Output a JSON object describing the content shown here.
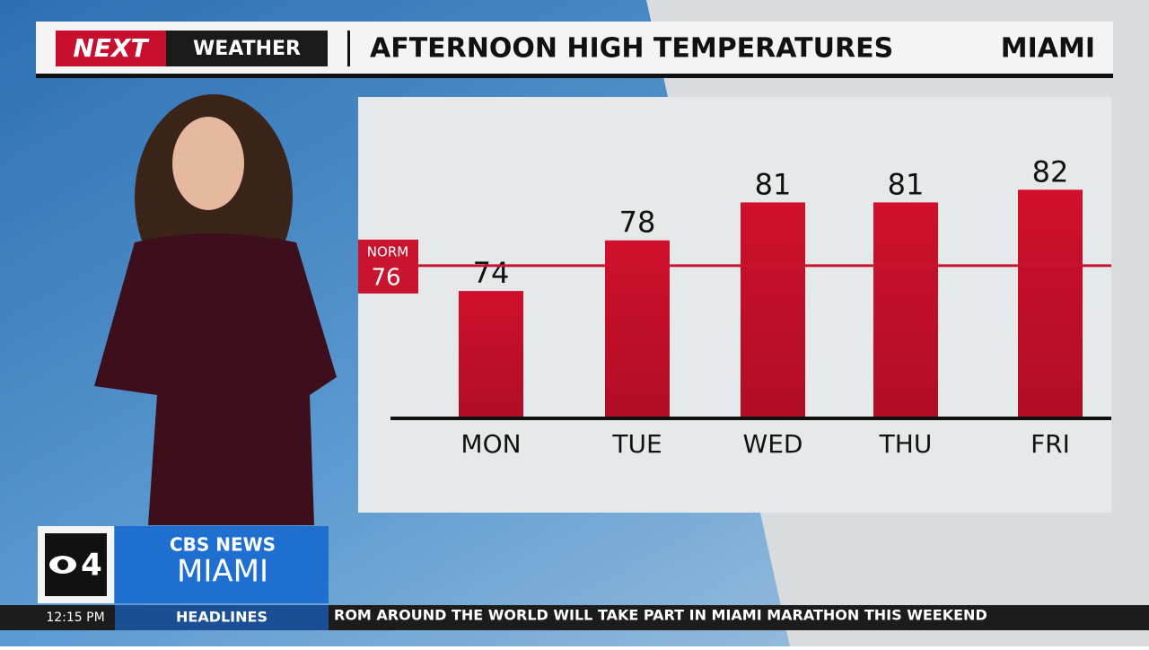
{
  "broadcast": {
    "brand": "NEXT",
    "segment": "WEATHER",
    "location": "MIAMI",
    "station_channel": "4",
    "station_network": "CBS NEWS",
    "station_city": "MIAMI",
    "time": "12:15 PM",
    "ticker_label": "HEADLINES",
    "ticker_text": "ROM AROUND THE WORLD WILL TAKE PART IN MIAMI MARATHON THIS WEEKEND"
  },
  "chart_data": {
    "type": "bar",
    "title": "AFTERNOON HIGH TEMPERATURES",
    "categories": [
      "MON",
      "TUE",
      "WED",
      "THU",
      "FRI"
    ],
    "values": [
      74,
      78,
      81,
      81,
      82
    ],
    "color": "#c8102e",
    "ylim": [
      64,
      86
    ],
    "reference_line": {
      "label": "NORM",
      "value": 76,
      "color": "#c8142e"
    }
  }
}
